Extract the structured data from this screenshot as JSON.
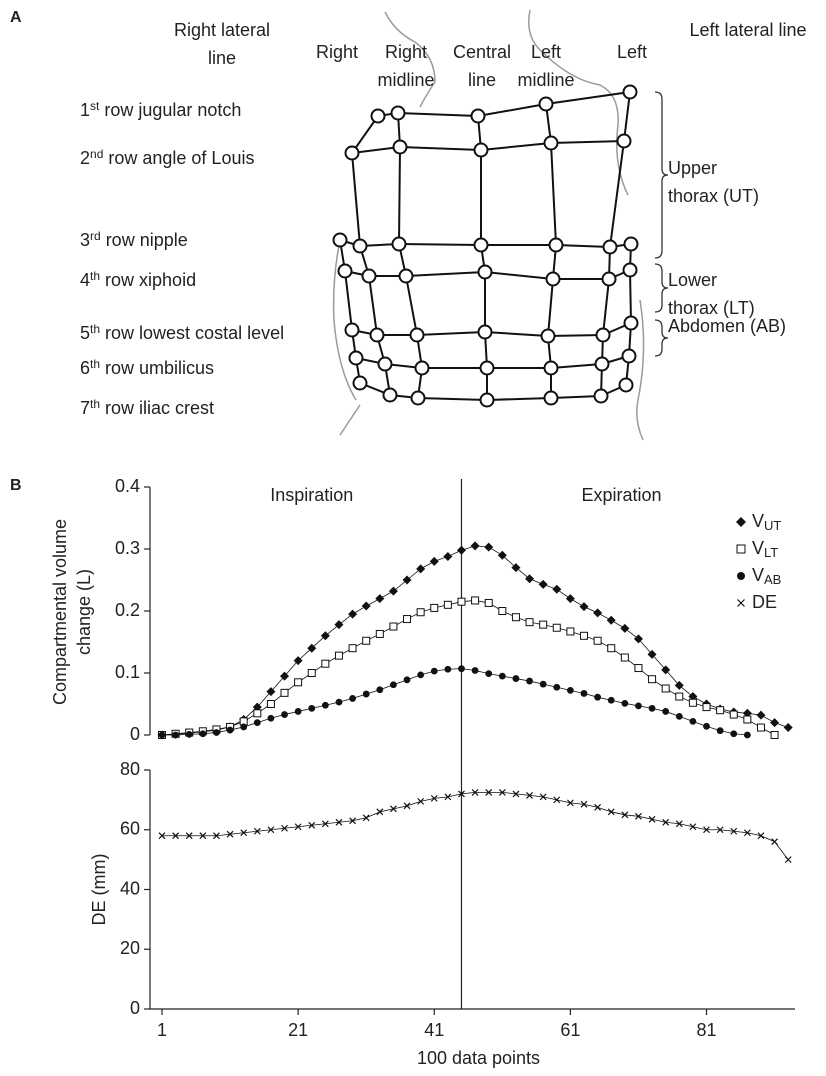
{
  "panel_labels": {
    "a": "A",
    "b": "B"
  },
  "diagram": {
    "column_headers": [
      "Right lateral line",
      "Right",
      "Right midline",
      "Central line",
      "Left midline",
      "Left",
      "Left lateral line"
    ],
    "rows": [
      {
        "number": "1",
        "suffix": "st",
        "text": "row jugular notch"
      },
      {
        "number": "2",
        "suffix": "nd",
        "text": "row angle of Louis"
      },
      {
        "number": "3",
        "suffix": "rd",
        "text": "row nipple"
      },
      {
        "number": "4",
        "suffix": "th",
        "text": "row xiphoid"
      },
      {
        "number": "5",
        "suffix": "th",
        "text": "row lowest costal level"
      },
      {
        "number": "6",
        "suffix": "th",
        "text": "row umbilicus"
      },
      {
        "number": "7",
        "suffix": "th",
        "text": "row iliac crest"
      }
    ],
    "regions": [
      "Upper thorax (UT)",
      "Lower thorax (LT)",
      "Abdomen (AB)"
    ]
  },
  "chart_data": [
    {
      "type": "line",
      "ylabel": "Compartmental volume change (L)",
      "annotations": [
        "Inspiration",
        "Expiration"
      ],
      "vline": 45,
      "legend": "upper right",
      "x": [
        1,
        3,
        5,
        7,
        9,
        11,
        13,
        15,
        17,
        19,
        21,
        23,
        25,
        27,
        29,
        31,
        33,
        35,
        37,
        39,
        41,
        43,
        45,
        47,
        49,
        51,
        53,
        55,
        57,
        59,
        61,
        63,
        65,
        67,
        69,
        71,
        73,
        75,
        77,
        79,
        81,
        83,
        85,
        87,
        89,
        91,
        93
      ],
      "xlim": [
        1,
        94
      ],
      "ylim": [
        0,
        0.4
      ],
      "yticks": [
        0,
        0.1,
        0.2,
        0.3,
        0.4
      ],
      "series": [
        {
          "name": "V",
          "subscript": "UT",
          "marker": "diamond",
          "color": "#111111",
          "values": [
            0,
            0.001,
            0.003,
            0.005,
            0.008,
            0.013,
            0.025,
            0.045,
            0.07,
            0.095,
            0.12,
            0.14,
            0.16,
            0.178,
            0.195,
            0.208,
            0.22,
            0.232,
            0.25,
            0.268,
            0.28,
            0.288,
            0.298,
            0.305,
            0.303,
            0.29,
            0.27,
            0.252,
            0.243,
            0.235,
            0.22,
            0.207,
            0.197,
            0.185,
            0.172,
            0.155,
            0.13,
            0.105,
            0.08,
            0.062,
            0.05,
            0.042,
            0.037,
            0.035,
            0.032,
            0.02,
            0.012
          ]
        },
        {
          "name": "V",
          "subscript": "LT",
          "marker": "square-open",
          "color": "#111111",
          "values": [
            0,
            0.002,
            0.004,
            0.006,
            0.009,
            0.013,
            0.022,
            0.035,
            0.05,
            0.068,
            0.085,
            0.1,
            0.115,
            0.128,
            0.14,
            0.152,
            0.163,
            0.175,
            0.187,
            0.198,
            0.205,
            0.21,
            0.215,
            0.217,
            0.213,
            0.2,
            0.19,
            0.182,
            0.178,
            0.173,
            0.167,
            0.16,
            0.152,
            0.14,
            0.125,
            0.108,
            0.09,
            0.075,
            0.062,
            0.052,
            0.045,
            0.04,
            0.033,
            0.025,
            0.012,
            0,
            null
          ]
        },
        {
          "name": "V",
          "subscript": "AB",
          "marker": "circle",
          "color": "#111111",
          "values": [
            0,
            0,
            0.001,
            0.002,
            0.004,
            0.008,
            0.013,
            0.02,
            0.027,
            0.033,
            0.038,
            0.043,
            0.048,
            0.053,
            0.059,
            0.066,
            0.073,
            0.081,
            0.089,
            0.097,
            0.103,
            0.106,
            0.107,
            0.104,
            0.099,
            0.095,
            0.091,
            0.087,
            0.082,
            0.077,
            0.072,
            0.067,
            0.061,
            0.056,
            0.051,
            0.047,
            0.043,
            0.038,
            0.03,
            0.022,
            0.014,
            0.007,
            0.002,
            0,
            null,
            null,
            null
          ]
        }
      ]
    },
    {
      "type": "line",
      "ylabel": "DE (mm)",
      "xlabel": "100 data points",
      "vline": 45,
      "x": [
        1,
        3,
        5,
        7,
        9,
        11,
        13,
        15,
        17,
        19,
        21,
        23,
        25,
        27,
        29,
        31,
        33,
        35,
        37,
        39,
        41,
        43,
        45,
        47,
        49,
        51,
        53,
        55,
        57,
        59,
        61,
        63,
        65,
        67,
        69,
        71,
        73,
        75,
        77,
        79,
        81,
        83,
        85,
        87,
        89,
        91,
        93
      ],
      "xlim": [
        1,
        94
      ],
      "xticks": [
        1,
        21,
        41,
        61,
        81
      ],
      "ylim": [
        0,
        80
      ],
      "yticks": [
        0,
        20,
        40,
        60,
        80
      ],
      "series": [
        {
          "name": "DE",
          "marker": "x",
          "color": "#111111",
          "values": [
            58,
            58,
            58,
            58,
            58,
            58.5,
            59,
            59.5,
            60,
            60.5,
            61,
            61.5,
            62,
            62.5,
            63,
            64,
            66,
            67,
            68,
            69.5,
            70.5,
            71,
            72,
            72.5,
            72.5,
            72.5,
            72,
            71.5,
            71,
            70,
            69,
            68.5,
            67.5,
            66,
            65,
            64.5,
            63.5,
            62.5,
            62,
            61,
            60,
            60,
            59.5,
            59,
            58,
            56,
            50
          ]
        }
      ]
    }
  ]
}
